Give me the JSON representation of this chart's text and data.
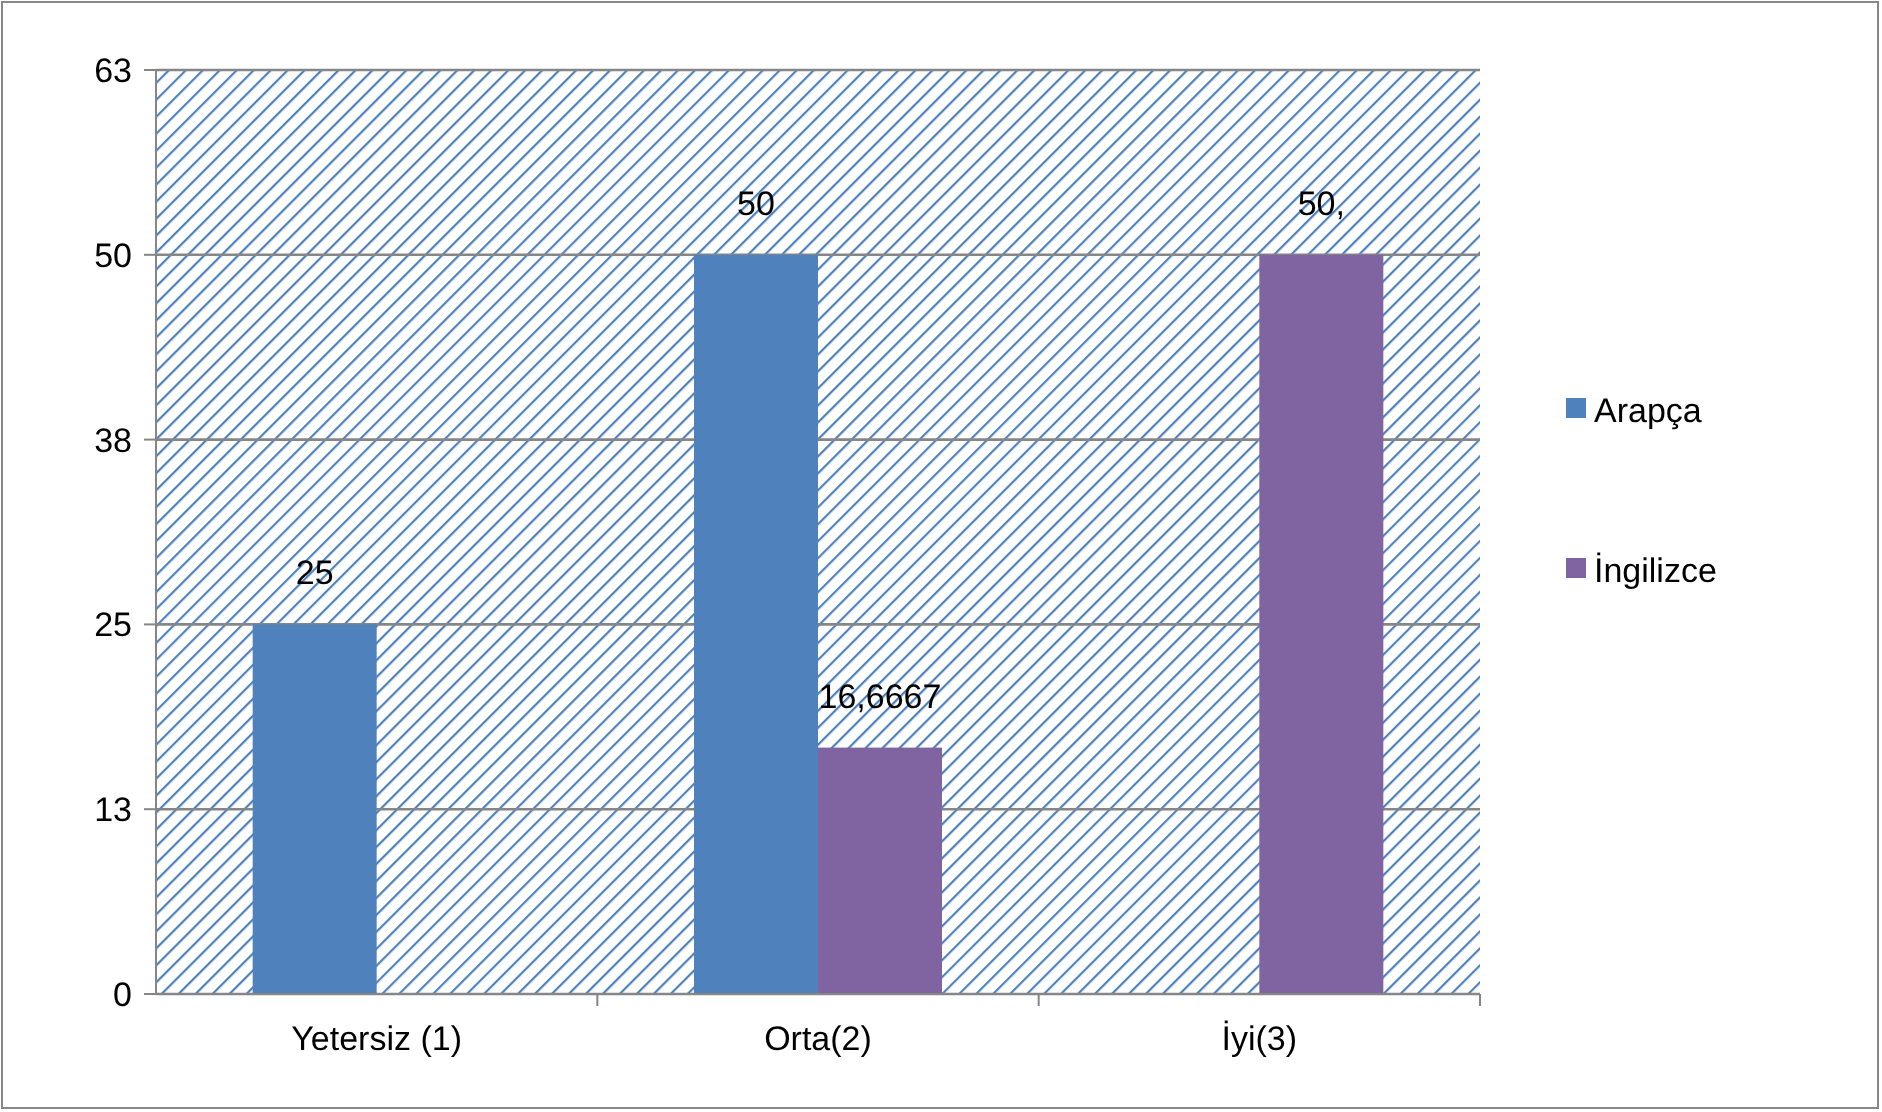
{
  "chart_data": {
    "type": "bar",
    "categories": [
      "Yetersiz (1)",
      "Orta(2)",
      "İyi(3)"
    ],
    "series": [
      {
        "name": "Arapça",
        "color": "#4f81bd",
        "values": [
          25,
          50,
          null
        ],
        "value_labels": [
          "25",
          "50",
          null
        ]
      },
      {
        "name": "İngilizce",
        "color": "#8064a2",
        "values": [
          null,
          16.6667,
          50
        ],
        "value_labels": [
          null,
          "16,6667",
          "50,"
        ]
      }
    ],
    "ylim": [
      0,
      62.5
    ],
    "yticks": [
      0,
      {
        "value": 12.5,
        "label": "13"
      },
      25,
      {
        "value": 37.5,
        "label": "38"
      },
      50,
      {
        "value": 62.5,
        "label": "63"
      }
    ],
    "grid": "y",
    "legend": "right"
  }
}
